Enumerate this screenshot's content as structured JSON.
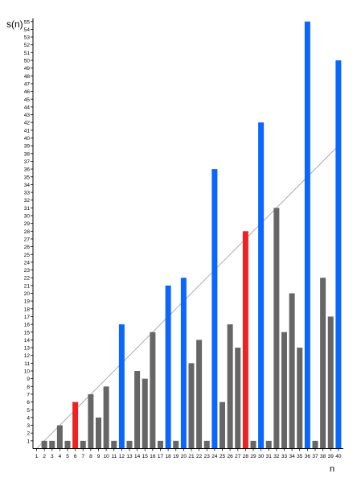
{
  "chart_data": {
    "type": "bar",
    "ylabel": "s(n)",
    "xlabel": "n",
    "x": [
      1,
      2,
      3,
      4,
      5,
      6,
      7,
      8,
      9,
      10,
      11,
      12,
      13,
      14,
      15,
      16,
      17,
      18,
      19,
      20,
      21,
      22,
      23,
      24,
      25,
      26,
      27,
      28,
      29,
      30,
      31,
      32,
      33,
      34,
      35,
      36,
      37,
      38,
      39,
      40
    ],
    "values": [
      0,
      1,
      1,
      3,
      1,
      6,
      1,
      7,
      4,
      8,
      1,
      16,
      1,
      10,
      9,
      15,
      1,
      21,
      1,
      22,
      11,
      14,
      1,
      36,
      6,
      16,
      13,
      28,
      1,
      42,
      1,
      31,
      15,
      20,
      13,
      55,
      1,
      22,
      17,
      50
    ],
    "classification": [
      "gray",
      "gray",
      "gray",
      "gray",
      "gray",
      "red",
      "gray",
      "gray",
      "gray",
      "gray",
      "gray",
      "blue",
      "gray",
      "gray",
      "gray",
      "gray",
      "gray",
      "blue",
      "gray",
      "blue",
      "gray",
      "gray",
      "gray",
      "blue",
      "gray",
      "gray",
      "gray",
      "red",
      "gray",
      "blue",
      "gray",
      "gray",
      "gray",
      "gray",
      "gray",
      "blue",
      "gray",
      "gray",
      "gray",
      "blue"
    ],
    "colors": {
      "gray": "#666666",
      "red": "#ee2222",
      "blue": "#0a66ff",
      "axis": "#000000",
      "reference_line": "#999999"
    },
    "ylim": [
      0,
      55
    ],
    "xlim": [
      1,
      40
    ],
    "yticks": [
      1,
      2,
      3,
      4,
      5,
      6,
      7,
      8,
      9,
      10,
      11,
      12,
      13,
      14,
      15,
      16,
      17,
      18,
      19,
      20,
      21,
      22,
      23,
      24,
      25,
      26,
      27,
      28,
      29,
      30,
      31,
      32,
      33,
      34,
      35,
      36,
      37,
      38,
      39,
      40,
      41,
      42,
      43,
      44,
      45,
      46,
      47,
      48,
      49,
      50,
      51,
      52,
      53,
      54,
      55
    ],
    "reference_line": {
      "type": "y=x",
      "from": [
        1,
        0
      ],
      "to": [
        40,
        39
      ]
    },
    "grid": false
  }
}
